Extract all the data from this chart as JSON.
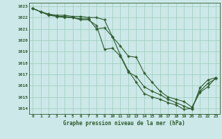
{
  "title": "Graphe pression niveau de la mer (hPa)",
  "ylim": [
    1013.5,
    1023.3
  ],
  "xlim": [
    -0.5,
    23.5
  ],
  "yticks": [
    1014,
    1015,
    1016,
    1017,
    1018,
    1019,
    1020,
    1021,
    1022,
    1023
  ],
  "xticks": [
    0,
    1,
    2,
    3,
    4,
    5,
    6,
    7,
    8,
    9,
    10,
    11,
    12,
    13,
    14,
    15,
    16,
    17,
    18,
    19,
    20,
    21,
    22,
    23
  ],
  "bg_color": "#cce8e8",
  "grid_color": "#99ccbb",
  "line_color": "#2d5a2d",
  "text_color": "#2d5a2d",
  "line1": [
    1022.8,
    1022.5,
    1022.2,
    1022.1,
    1022.0,
    1022.0,
    1021.8,
    1021.8,
    1021.3,
    1019.2,
    1019.3,
    1018.6,
    1017.2,
    1016.8,
    1015.9,
    1015.5,
    1015.2,
    1014.8,
    1014.5,
    1014.2,
    1013.9,
    1015.8,
    1016.5,
    1016.7
  ],
  "line2": [
    1022.8,
    1022.5,
    1022.3,
    1022.2,
    1022.2,
    1022.1,
    1022.1,
    1022.0,
    1022.0,
    1021.8,
    1020.3,
    1019.5,
    1018.6,
    1018.5,
    1017.1,
    1016.3,
    1015.5,
    1015.0,
    1014.8,
    1014.6,
    1014.1,
    1015.4,
    1015.9,
    1016.7
  ],
  "line3": [
    1022.8,
    1022.5,
    1022.3,
    1022.1,
    1022.1,
    1022.0,
    1021.9,
    1021.9,
    1021.0,
    1021.1,
    1020.3,
    1018.7,
    1017.3,
    1016.3,
    1015.3,
    1015.0,
    1014.8,
    1014.5,
    1014.3,
    1013.9,
    1014.0,
    1015.5,
    1016.2,
    1016.6
  ]
}
